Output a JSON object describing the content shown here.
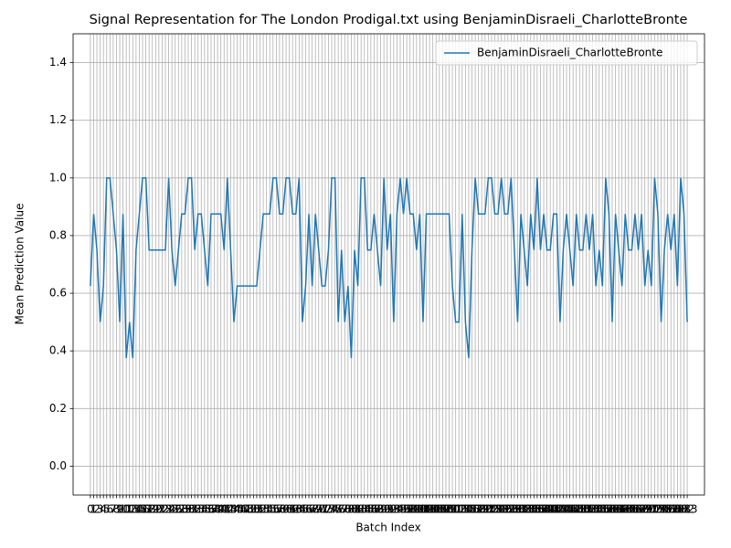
{
  "chart_data": {
    "type": "line",
    "title": "Signal Representation for The London Prodigal.txt using BenjaminDisraeli_CharlotteBronte",
    "x_label": "Batch Index",
    "y_label": "Mean Prediction Value",
    "x": [
      0,
      1,
      2,
      3,
      4,
      5,
      6,
      7,
      8,
      9,
      10,
      11,
      12,
      13,
      14,
      15,
      16,
      17,
      18,
      19,
      20,
      21,
      22,
      23,
      24,
      25,
      26,
      27,
      28,
      29,
      30,
      31,
      32,
      33,
      34,
      35,
      36,
      37,
      38,
      39,
      40,
      41,
      42,
      43,
      44,
      45,
      46,
      47,
      48,
      49,
      50,
      51,
      52,
      53,
      54,
      55,
      56,
      57,
      58,
      59,
      60,
      61,
      62,
      63,
      64,
      65,
      66,
      67,
      68,
      69,
      70,
      71,
      72,
      73,
      74,
      75,
      76,
      77,
      78,
      79,
      80,
      81,
      82,
      83,
      84,
      85,
      86,
      87,
      88,
      89,
      90,
      91,
      92,
      93,
      94,
      95,
      96,
      97,
      98,
      99,
      100,
      101,
      102,
      103,
      104,
      105,
      106,
      107,
      108,
      109,
      110,
      111,
      112,
      113,
      114,
      115,
      116,
      117,
      118,
      119,
      120,
      121,
      122,
      123,
      124,
      125,
      126,
      127,
      128,
      129,
      130,
      131,
      132,
      133,
      134,
      135,
      136,
      137,
      138,
      139,
      140,
      141,
      142,
      143,
      144,
      145,
      146,
      147,
      148,
      149,
      150,
      151,
      152,
      153,
      154,
      155,
      156,
      157,
      158,
      159,
      160,
      161,
      162,
      163,
      164,
      165,
      166,
      167,
      168,
      169,
      170,
      171,
      172,
      173,
      174,
      175,
      176,
      177,
      178,
      179,
      180,
      181,
      182,
      183
    ],
    "series": [
      {
        "name": "BenjaminDisraeli_CharlotteBronte",
        "color": "#1f77b4",
        "values": [
          0.625,
          0.875,
          0.75,
          0.5,
          0.625,
          1,
          1,
          0.875,
          0.75,
          0.5,
          0.875,
          0.375,
          0.5,
          0.375,
          0.75,
          0.875,
          1,
          1,
          0.75,
          0.75,
          0.75,
          0.75,
          0.75,
          0.75,
          1,
          0.75,
          0.625,
          0.75,
          0.875,
          0.875,
          1,
          1,
          0.75,
          0.875,
          0.875,
          0.75,
          0.625,
          0.875,
          0.875,
          0.875,
          0.875,
          0.75,
          1,
          0.75,
          0.5,
          0.625,
          0.625,
          0.625,
          0.625,
          0.625,
          0.625,
          0.625,
          0.75,
          0.875,
          0.875,
          0.875,
          1,
          1,
          0.875,
          0.875,
          1,
          1,
          0.875,
          0.875,
          1,
          0.5,
          0.625,
          0.875,
          0.625,
          0.875,
          0.75,
          0.625,
          0.625,
          0.75,
          1,
          1,
          0.5,
          0.75,
          0.5,
          0.625,
          0.375,
          0.75,
          0.625,
          1,
          1,
          0.75,
          0.75,
          0.875,
          0.75,
          0.625,
          1,
          0.75,
          0.875,
          0.5,
          0.875,
          1,
          0.875,
          1,
          0.875,
          0.875,
          0.75,
          0.875,
          0.5,
          0.875,
          0.875,
          0.875,
          0.875,
          0.875,
          0.875,
          0.875,
          0.875,
          0.625,
          0.5,
          0.5,
          0.875,
          0.5,
          0.375,
          0.75,
          1,
          0.875,
          0.875,
          0.875,
          1,
          1,
          0.875,
          0.875,
          1,
          0.875,
          0.875,
          1,
          0.75,
          0.5,
          0.875,
          0.75,
          0.625,
          0.875,
          0.75,
          1,
          0.75,
          0.875,
          0.75,
          0.75,
          0.875,
          0.875,
          0.5,
          0.75,
          0.875,
          0.75,
          0.625,
          0.875,
          0.75,
          0.75,
          0.875,
          0.75,
          0.875,
          0.625,
          0.75,
          0.625,
          1,
          0.875,
          0.5,
          0.875,
          0.75,
          0.625,
          0.875,
          0.75,
          0.75,
          0.875,
          0.75,
          0.875,
          0.625,
          0.75,
          0.625,
          1,
          0.875,
          0.5,
          0.75,
          0.875,
          0.75,
          0.875,
          0.625,
          1,
          0.875,
          0.5
        ]
      }
    ],
    "xlim": [
      -5.3,
      188.3
    ],
    "ylim": [
      -0.1,
      1.5
    ],
    "xticks": [
      0,
      1,
      2,
      3,
      4,
      5,
      6,
      7,
      8,
      9,
      10,
      11,
      12,
      13,
      14,
      15,
      16,
      17,
      18,
      19,
      20,
      21,
      22,
      23,
      24,
      25,
      26,
      27,
      28,
      29,
      30,
      31,
      32,
      33,
      34,
      35,
      36,
      37,
      38,
      39,
      40,
      41,
      42,
      43,
      44,
      45,
      46,
      47,
      48,
      49,
      50,
      51,
      52,
      53,
      54,
      55,
      56,
      57,
      58,
      59,
      60,
      61,
      62,
      63,
      64,
      65,
      66,
      67,
      68,
      69,
      70,
      71,
      72,
      73,
      74,
      75,
      76,
      77,
      78,
      79,
      80,
      81,
      82,
      83,
      84,
      85,
      86,
      87,
      88,
      89,
      90,
      91,
      92,
      93,
      94,
      95,
      96,
      97,
      98,
      99,
      100,
      101,
      102,
      103,
      104,
      105,
      106,
      107,
      108,
      109,
      110,
      111,
      112,
      113,
      114,
      115,
      116,
      117,
      118,
      119,
      120,
      121,
      122,
      123,
      124,
      125,
      126,
      127,
      128,
      129,
      130,
      131,
      132,
      133,
      134,
      135,
      136,
      137,
      138,
      139,
      140,
      141,
      142,
      143,
      144,
      145,
      146,
      147,
      148,
      149,
      150,
      151,
      152,
      153,
      154,
      155,
      156,
      157,
      158,
      159,
      160,
      161,
      162,
      163,
      164,
      165,
      166,
      167,
      168,
      169,
      170,
      171,
      172,
      173,
      174,
      175,
      176,
      177,
      178,
      179,
      180,
      181,
      182,
      183
    ],
    "yticks": [
      {
        "value": 0,
        "label": "0.0"
      },
      0.2,
      0.4,
      0.6,
      0.8,
      {
        "value": 1,
        "label": "1.0"
      },
      1.2,
      1.4
    ],
    "grid": true,
    "legend": "upper right"
  }
}
